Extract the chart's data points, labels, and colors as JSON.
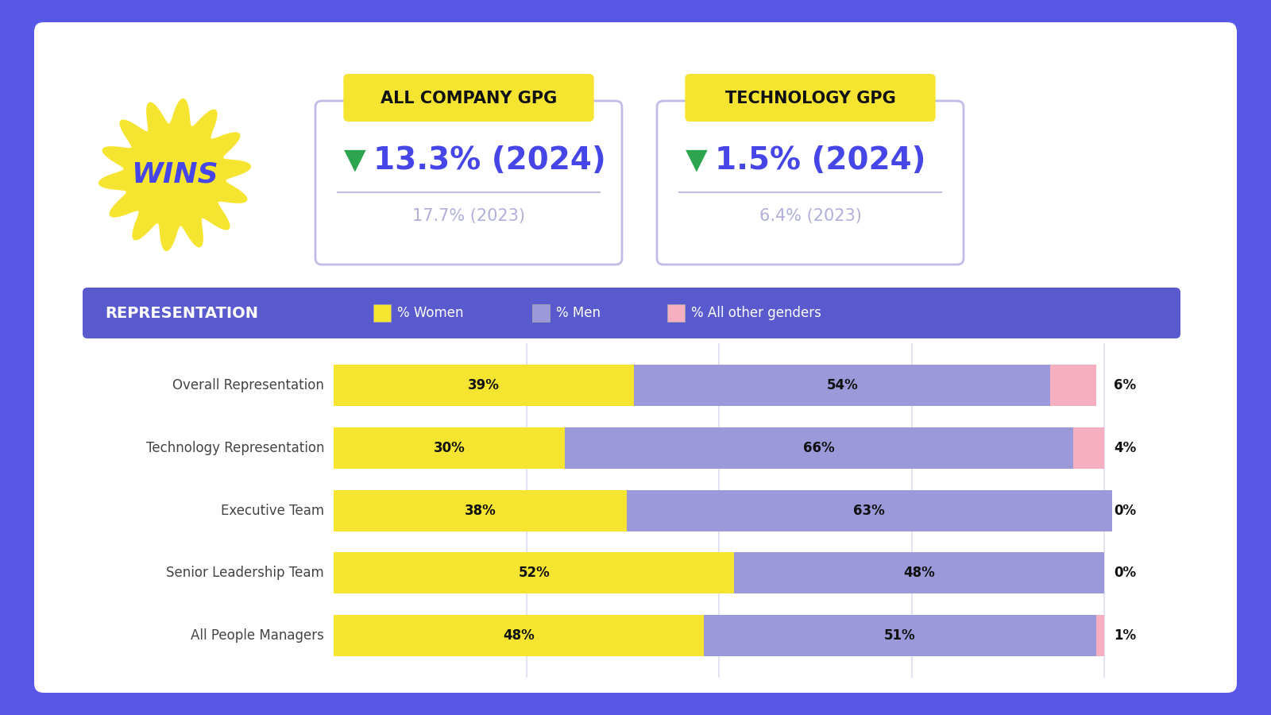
{
  "bg_color": "#5858e8",
  "card_color": "#ffffff",
  "categories": [
    "Overall Representation",
    "Technology Representation",
    "Executive Team",
    "Senior Leadership Team",
    "All People Managers"
  ],
  "women_pct": [
    39,
    30,
    38,
    52,
    48
  ],
  "men_pct": [
    54,
    66,
    63,
    48,
    51
  ],
  "other_pct": [
    6,
    4,
    0,
    0,
    1
  ],
  "women_color": "#f5e530",
  "men_color": "#9b99d9",
  "other_color": "#f5afc0",
  "header_bg": "#5a5acf",
  "company_gpg_title": "ALL COMPANY GPG",
  "company_gpg_value": "13.3% (2024)",
  "company_gpg_prev": "17.7% (2023)",
  "tech_gpg_title": "TECHNOLOGY GPG",
  "tech_gpg_value": "1.5% (2024)",
  "tech_gpg_prev": "6.4% (2023)",
  "wins_color": "#f5e530",
  "wins_text": "WINS",
  "arrow_color": "#2da44e",
  "value_color": "#4646e8",
  "prev_color": "#b0afd8",
  "gpg_border": "#c0bce8",
  "legend_women": "% Women",
  "legend_men": "% Men",
  "legend_other": "% All other genders"
}
